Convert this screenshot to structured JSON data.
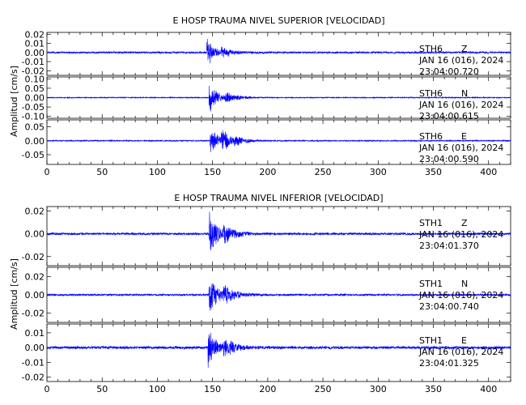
{
  "chart_data": [
    {
      "type": "line",
      "title": "E HOSP TRAUMA NIVEL SUPERIOR [VELOCIDAD]",
      "ylabel": "Amplitud [cm/s]",
      "xlim": [
        0,
        420
      ],
      "x_ticks": [
        0,
        50,
        100,
        150,
        200,
        250,
        300,
        350,
        400
      ],
      "series_color": "#0000ff",
      "series": [
        {
          "station": "STH6",
          "component": "Z",
          "date": "JAN 16 (016), 2024",
          "time": "23:04:00.720",
          "ylim": [
            -0.025,
            0.022
          ],
          "yticks": [
            "0.02",
            "0.01",
            "0.00",
            "-0.01",
            "-0.02"
          ],
          "ytick_values": [
            0.02,
            0.01,
            0.0,
            -0.01,
            -0.02
          ],
          "noise": 0.0012,
          "events": [
            [
              145,
              0.019,
              6,
              0.35
            ],
            [
              158,
              0.007,
              8,
              0.45
            ]
          ]
        },
        {
          "station": "STH6",
          "component": "N",
          "date": "JAN 16 (016), 2024",
          "time": "23:04:00.615",
          "ylim": [
            -0.11,
            0.11
          ],
          "yticks": [
            "0.10",
            "0.05",
            "0.00",
            "-0.05",
            "-0.10"
          ],
          "ytick_values": [
            0.1,
            0.05,
            0.0,
            -0.05,
            -0.1
          ],
          "noise": 0.003,
          "events": [
            [
              147,
              0.09,
              7,
              0.35
            ],
            [
              162,
              0.03,
              10,
              0.45
            ]
          ]
        },
        {
          "station": "STH6",
          "component": "E",
          "date": "JAN 16 (016), 2024",
          "time": "23:04:00.590",
          "ylim": [
            -0.085,
            0.075
          ],
          "yticks": [
            "0.05",
            "0.00",
            "-0.05"
          ],
          "ytick_values": [
            0.05,
            0.0,
            -0.05
          ],
          "noise": 0.0025,
          "events": [
            [
              148,
              0.06,
              6,
              0.3
            ],
            [
              158,
              0.045,
              7,
              0.35
            ],
            [
              170,
              0.015,
              10,
              0.5
            ]
          ]
        }
      ]
    },
    {
      "type": "line",
      "title": "E HOSP TRAUMA NIVEL INFERIOR [VELOCIDAD]",
      "ylabel": "Amplitud [cm/s]",
      "xlim": [
        0,
        420
      ],
      "x_ticks": [
        0,
        50,
        100,
        150,
        200,
        250,
        300,
        350,
        400
      ],
      "series_color": "#0000ff",
      "series": [
        {
          "station": "STH1",
          "component": "Z",
          "date": "JAN 16 (016), 2024",
          "time": "23:04:01.370",
          "ylim": [
            -0.028,
            0.024
          ],
          "yticks": [
            "0.02",
            "0.00",
            "-0.02"
          ],
          "ytick_values": [
            0.02,
            0.0,
            -0.02
          ],
          "noise": 0.0012,
          "events": [
            [
              147,
              0.021,
              7,
              0.35
            ],
            [
              160,
              0.008,
              10,
              0.45
            ]
          ]
        },
        {
          "station": "STH1",
          "component": "N",
          "date": "JAN 16 (016), 2024",
          "time": "23:04:00.740",
          "ylim": [
            -0.03,
            0.03
          ],
          "yticks": [
            "0.02",
            "0.00",
            "-0.02"
          ],
          "ytick_values": [
            0.02,
            0.0,
            -0.02
          ],
          "noise": 0.0013,
          "events": [
            [
              147,
              0.024,
              7,
              0.35
            ],
            [
              160,
              0.009,
              10,
              0.45
            ]
          ]
        },
        {
          "station": "STH1",
          "component": "E",
          "date": "JAN 16 (016), 2024",
          "time": "23:04:01.325",
          "ylim": [
            -0.023,
            0.016
          ],
          "yticks": [
            "0.01",
            "0.00",
            "-0.01",
            "-0.02"
          ],
          "ytick_values": [
            0.01,
            0.0,
            -0.01,
            -0.02
          ],
          "noise": 0.0011,
          "events": [
            [
              146,
              0.014,
              7,
              0.35
            ],
            [
              160,
              0.006,
              10,
              0.45
            ]
          ]
        }
      ]
    }
  ]
}
